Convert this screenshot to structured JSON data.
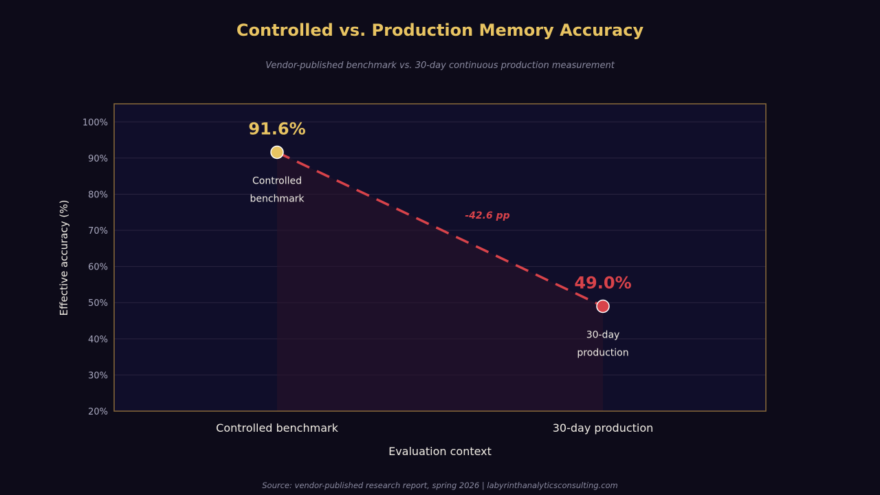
{
  "title": "Controlled vs. Production Memory Accuracy",
  "subtitle": "Vendor-published benchmark vs. 30-day continuous production measurement",
  "footer": "Source: vendor-published research report, spring 2026  |  labyrinthanalyticsconsulting.com",
  "colors": {
    "background": "#0d0b19",
    "plot_background": "#100e2a",
    "plot_border": "#8a6a3a",
    "benchmark": "#e8c462",
    "production": "#d8434a",
    "tick_text": "#a8a8bf",
    "label_text": "#f0ece4"
  },
  "chart_data": {
    "type": "line",
    "title": "Controlled vs. Production Memory Accuracy",
    "subtitle": "Vendor-published benchmark vs. 30-day continuous production measurement",
    "xlabel": "Evaluation context",
    "ylabel": "Effective accuracy (%)",
    "categories": [
      "Controlled benchmark",
      "30-day production"
    ],
    "values": [
      91.6,
      49.0
    ],
    "value_labels": [
      "91.6%",
      "49.0%"
    ],
    "point_labels": [
      [
        "Controlled",
        "benchmark"
      ],
      [
        "30-day",
        "production"
      ]
    ],
    "annotation": "-42.6 pp",
    "ylim": [
      20,
      105
    ],
    "yticks": [
      20,
      30,
      40,
      50,
      60,
      70,
      80,
      90,
      100
    ],
    "ytick_labels": [
      "20%",
      "30%",
      "40%",
      "50%",
      "60%",
      "70%",
      "80%",
      "90%",
      "100%"
    ],
    "grid": true
  }
}
